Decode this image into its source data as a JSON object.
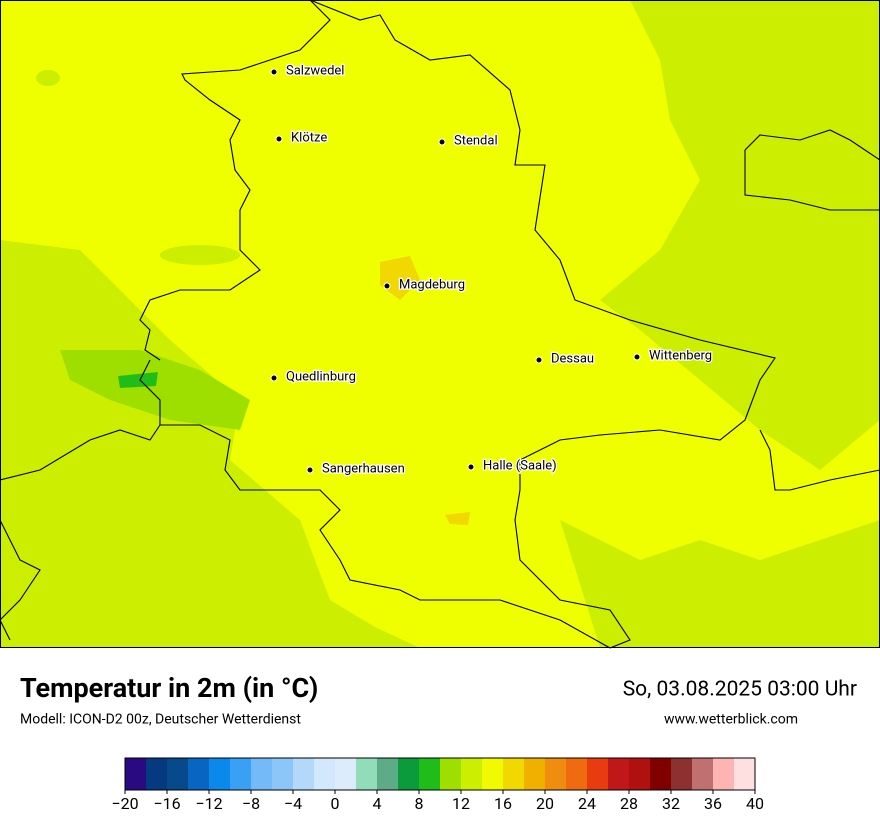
{
  "title": "Temperatur in 2m (in °C)",
  "subtitle": "Modell: ICON-D2 00z, Deutscher Wetterdienst",
  "datetime": "So, 03.08.2025 03:00 Uhr",
  "website": "www.wetterblick.com",
  "cities": [
    "Salzwedel",
    "Klötze",
    "Stendal",
    "Magdeburg",
    "Dessau",
    "Wittenberg",
    "Quedlinburg",
    "Sangerhausen",
    "Halle (Saale)"
  ],
  "colorbar": {
    "colors": [
      "#2a0a80",
      "#063a80",
      "#08498c",
      "#0866c2",
      "#0a88ec",
      "#3aa0f6",
      "#74baf8",
      "#8cc6f8",
      "#b4d8fa",
      "#d2e8fc",
      "#dcecfc",
      "#93dcb9",
      "#5eab88",
      "#0b9b3c",
      "#20bd1a",
      "#9fdf00",
      "#ccee00",
      "#f2fa00",
      "#f0d800",
      "#f0b000",
      "#f08c10",
      "#f06a10",
      "#e83c10",
      "#c01818",
      "#b01010",
      "#800000",
      "#8c3030",
      "#c07070",
      "#ffb4b4",
      "#ffe0e0"
    ],
    "ticks": [
      {
        "value": -20,
        "label": "−20"
      },
      {
        "value": -16,
        "label": "−16"
      },
      {
        "value": -12,
        "label": "−12"
      },
      {
        "value": -8,
        "label": "−8"
      },
      {
        "value": -4,
        "label": "−4"
      },
      0,
      4,
      8,
      12,
      16,
      20,
      24,
      28,
      32,
      36,
      40
    ]
  }
}
